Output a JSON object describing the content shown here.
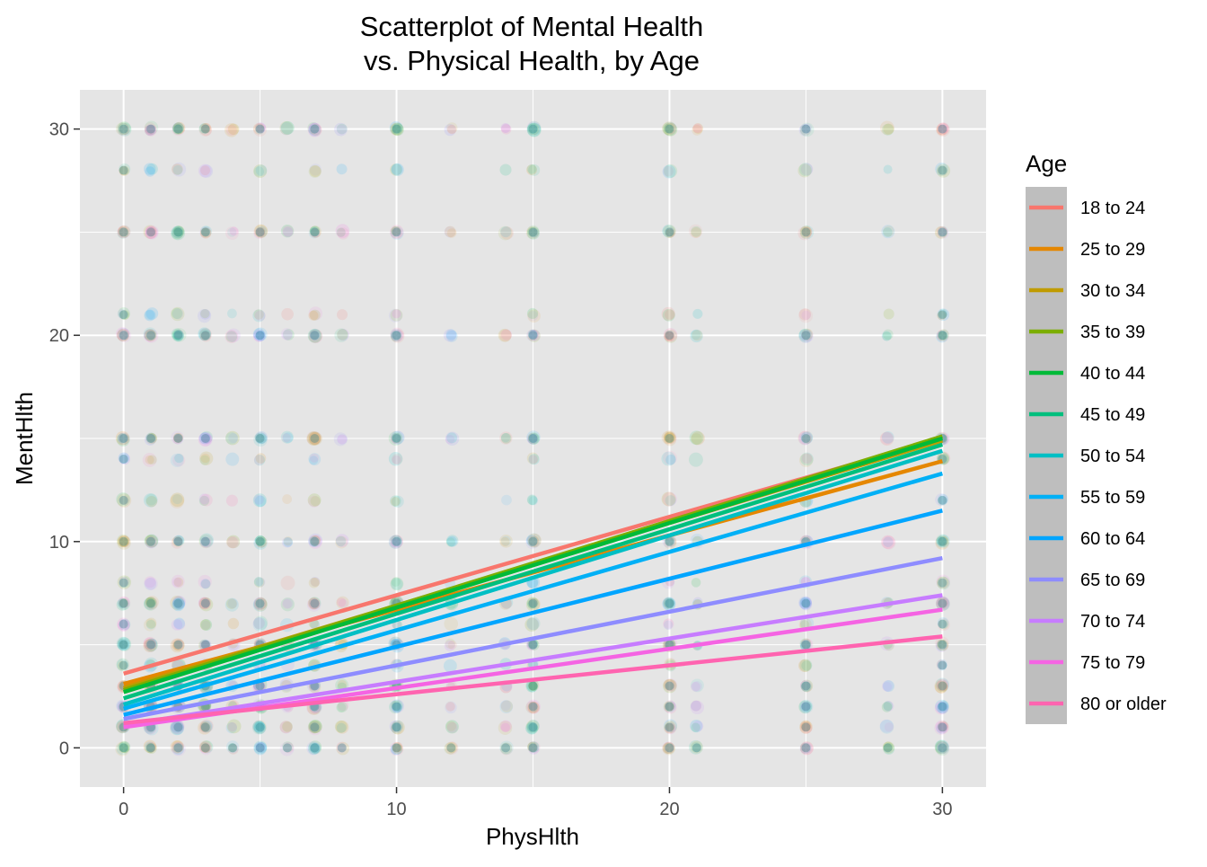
{
  "chart_data": {
    "type": "scatter",
    "title": "Scatterplot of Mental Health\nvs. Physical Health, by Age",
    "title_lines": [
      "Scatterplot of Mental Health",
      "vs. Physical Health, by Age"
    ],
    "xlabel": "PhysHlth",
    "ylabel": "MentHlth",
    "xlim": [
      -1.6,
      31.6
    ],
    "ylim": [
      -1.9,
      31.9
    ],
    "x_ticks": [
      0,
      10,
      20,
      30
    ],
    "y_ticks": [
      0,
      10,
      20,
      30
    ],
    "x_minor": [
      5,
      15,
      25
    ],
    "y_minor": [
      5,
      15,
      25
    ],
    "grid": true,
    "legend_title": "Age",
    "legend_position": "right",
    "background": "#e5e5e5",
    "grid_color": "#ffffff",
    "scatter_value_grid": [
      0,
      1,
      2,
      3,
      4,
      5,
      6,
      7,
      8,
      10,
      12,
      14,
      15,
      20,
      21,
      25,
      28,
      30
    ],
    "series": [
      {
        "name": "18 to 24",
        "color": "#F8766D",
        "fit": {
          "intercept": 3.6,
          "slope": 0.38
        }
      },
      {
        "name": "25 to 29",
        "color": "#E58700",
        "fit": {
          "intercept": 3.1,
          "slope": 0.36
        }
      },
      {
        "name": "30 to 34",
        "color": "#C09B00",
        "fit": {
          "intercept": 2.9,
          "slope": 0.4
        }
      },
      {
        "name": "35 to 39",
        "color": "#7CAE00",
        "fit": {
          "intercept": 2.8,
          "slope": 0.41
        }
      },
      {
        "name": "40 to 44",
        "color": "#00BA38",
        "fit": {
          "intercept": 2.7,
          "slope": 0.41
        }
      },
      {
        "name": "45 to 49",
        "color": "#00BF7D",
        "fit": {
          "intercept": 2.4,
          "slope": 0.41
        }
      },
      {
        "name": "50 to 54",
        "color": "#00BFC4",
        "fit": {
          "intercept": 2.1,
          "slope": 0.41
        }
      },
      {
        "name": "55 to 59",
        "color": "#00B0F6",
        "fit": {
          "intercept": 1.9,
          "slope": 0.38
        }
      },
      {
        "name": "60 to 64",
        "color": "#00A5FF",
        "fit": {
          "intercept": 1.6,
          "slope": 0.33
        }
      },
      {
        "name": "65 to 69",
        "color": "#8E8CFF",
        "fit": {
          "intercept": 1.4,
          "slope": 0.26
        }
      },
      {
        "name": "70 to 74",
        "color": "#C77CFF",
        "fit": {
          "intercept": 1.1,
          "slope": 0.21
        }
      },
      {
        "name": "75 to 79",
        "color": "#F564E3",
        "fit": {
          "intercept": 1.0,
          "slope": 0.19
        }
      },
      {
        "name": "80 or older",
        "color": "#FF64B0",
        "fit": {
          "intercept": 1.2,
          "slope": 0.14
        }
      }
    ]
  }
}
